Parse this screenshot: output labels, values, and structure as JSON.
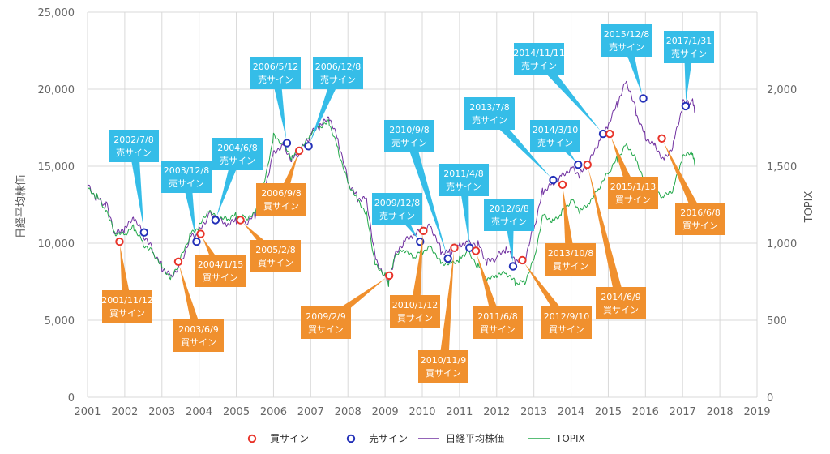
{
  "chart_data": {
    "type": "line",
    "title": "",
    "xlabel": "",
    "ylabel_left": "日経平均株価",
    "ylabel_right": "TOPIX",
    "grid": true,
    "legend_position": "bottom",
    "x_ticks": [
      "2001",
      "2002",
      "2003",
      "2004",
      "2005",
      "2006",
      "2007",
      "2008",
      "2009",
      "2010",
      "2011",
      "2012",
      "2013",
      "2014",
      "2015",
      "2016",
      "2017",
      "2018",
      "2019"
    ],
    "xlim": [
      2001,
      2019
    ],
    "y_left": {
      "lim": [
        0,
        25000
      ],
      "ticks": [
        0,
        5000,
        10000,
        15000,
        20000,
        25000
      ],
      "tick_labels": [
        "0",
        "5,000",
        "10,000",
        "15,000",
        "20,000",
        "25,000"
      ]
    },
    "y_right": {
      "lim": [
        0,
        2500
      ],
      "ticks": [
        0,
        500,
        1000,
        1500,
        2000
      ],
      "tick_labels": [
        "0",
        "500",
        "1,000",
        "1,500",
        "2,000"
      ]
    },
    "colors": {
      "nikkei": "#7030a0",
      "topix": "#22a84a",
      "buy": "#e8342a",
      "sell": "#2330b8",
      "buy_box": "#f0902e",
      "sell_box": "#35bde8"
    },
    "legend": [
      {
        "key": "buy",
        "label": "買サイン"
      },
      {
        "key": "sell",
        "label": "売サイン"
      },
      {
        "key": "nikkei",
        "label": "日経平均株価"
      },
      {
        "key": "topix",
        "label": "TOPIX"
      }
    ],
    "series": [
      {
        "name": "日経平均株価",
        "axis": "left",
        "x": [
          2001.0,
          2001.25,
          2001.5,
          2001.75,
          2002.0,
          2002.25,
          2002.5,
          2002.75,
          2003.0,
          2003.25,
          2003.5,
          2003.75,
          2004.0,
          2004.25,
          2004.5,
          2004.75,
          2005.0,
          2005.25,
          2005.5,
          2005.75,
          2006.0,
          2006.25,
          2006.5,
          2006.75,
          2007.0,
          2007.25,
          2007.5,
          2007.75,
          2008.0,
          2008.25,
          2008.5,
          2008.75,
          2009.0,
          2009.1,
          2009.25,
          2009.5,
          2009.75,
          2010.0,
          2010.25,
          2010.5,
          2010.75,
          2011.0,
          2011.2,
          2011.5,
          2011.75,
          2012.0,
          2012.25,
          2012.5,
          2012.75,
          2013.0,
          2013.25,
          2013.5,
          2013.75,
          2014.0,
          2014.25,
          2014.5,
          2014.75,
          2015.0,
          2015.25,
          2015.5,
          2015.75,
          2016.0,
          2016.25,
          2016.5,
          2016.75,
          2017.0,
          2017.25,
          2017.33
        ],
        "y": [
          13900,
          13000,
          12500,
          10500,
          10800,
          11500,
          10500,
          9500,
          8500,
          8000,
          8700,
          10500,
          10700,
          11800,
          11500,
          11000,
          11400,
          11300,
          11800,
          13500,
          16000,
          16500,
          15500,
          16000,
          17000,
          17500,
          18000,
          16500,
          14000,
          13000,
          13000,
          9000,
          8000,
          7500,
          9000,
          10000,
          10300,
          10800,
          11000,
          9500,
          9500,
          10000,
          10200,
          10000,
          8700,
          9000,
          9500,
          8700,
          8800,
          11000,
          13500,
          14000,
          14500,
          15000,
          14500,
          15200,
          16500,
          17500,
          19000,
          20500,
          18500,
          17000,
          16500,
          15500,
          16500,
          19000,
          19200,
          18500
        ]
      },
      {
        "name": "TOPIX",
        "axis": "right",
        "x": [
          2001.0,
          2001.25,
          2001.5,
          2001.75,
          2002.0,
          2002.25,
          2002.5,
          2002.75,
          2003.0,
          2003.25,
          2003.5,
          2003.75,
          2004.0,
          2004.25,
          2004.5,
          2004.75,
          2005.0,
          2005.25,
          2005.5,
          2005.75,
          2006.0,
          2006.25,
          2006.5,
          2006.75,
          2007.0,
          2007.25,
          2007.5,
          2007.75,
          2008.0,
          2008.25,
          2008.5,
          2008.75,
          2009.0,
          2009.1,
          2009.25,
          2009.5,
          2009.75,
          2010.0,
          2010.25,
          2010.5,
          2010.75,
          2011.0,
          2011.2,
          2011.5,
          2011.75,
          2012.0,
          2012.25,
          2012.5,
          2012.75,
          2013.0,
          2013.25,
          2013.5,
          2013.75,
          2014.0,
          2014.25,
          2014.5,
          2014.75,
          2015.0,
          2015.25,
          2015.5,
          2015.75,
          2016.0,
          2016.25,
          2016.5,
          2016.75,
          2017.0,
          2017.25,
          2017.33
        ],
        "y": [
          1350,
          1300,
          1200,
          1050,
          1050,
          1100,
          1000,
          950,
          860,
          780,
          900,
          1050,
          1100,
          1200,
          1150,
          1150,
          1180,
          1170,
          1200,
          1400,
          1700,
          1650,
          1550,
          1600,
          1700,
          1750,
          1780,
          1600,
          1400,
          1300,
          1200,
          850,
          800,
          730,
          900,
          950,
          900,
          950,
          980,
          880,
          880,
          900,
          950,
          850,
          750,
          780,
          800,
          740,
          750,
          900,
          1200,
          1150,
          1200,
          1280,
          1200,
          1250,
          1350,
          1450,
          1550,
          1650,
          1550,
          1400,
          1350,
          1300,
          1350,
          1550,
          1580,
          1500
        ]
      }
    ],
    "signals": [
      {
        "type": "sell",
        "date": "2002/7/8",
        "label": "売サイン",
        "x": 2002.52,
        "value": 10700
      },
      {
        "type": "sell",
        "date": "2003/12/8",
        "label": "売サイン",
        "x": 2003.93,
        "value": 10100
      },
      {
        "type": "sell",
        "date": "2004/6/8",
        "label": "売サイン",
        "x": 2004.44,
        "value": 11500
      },
      {
        "type": "sell",
        "date": "2006/5/12",
        "label": "売サイン",
        "x": 2006.36,
        "value": 16500
      },
      {
        "type": "sell",
        "date": "2006/12/8",
        "label": "売サイン",
        "x": 2006.94,
        "value": 16300
      },
      {
        "type": "sell",
        "date": "2009/12/8",
        "label": "売サイン",
        "x": 2009.94,
        "value": 10100
      },
      {
        "type": "sell",
        "date": "2010/9/8",
        "label": "売サイン",
        "x": 2010.69,
        "value": 9000
      },
      {
        "type": "sell",
        "date": "2011/4/8",
        "label": "売サイン",
        "x": 2011.27,
        "value": 9700
      },
      {
        "type": "sell",
        "date": "2012/6/8",
        "label": "売サイン",
        "x": 2012.44,
        "value": 8500
      },
      {
        "type": "sell",
        "date": "2013/7/8",
        "label": "売サイン",
        "x": 2013.52,
        "value": 14100
      },
      {
        "type": "sell",
        "date": "2014/3/10",
        "label": "売サイン",
        "x": 2014.19,
        "value": 15100
      },
      {
        "type": "sell",
        "date": "2014/11/11",
        "label": "売サイン",
        "x": 2014.86,
        "value": 17100
      },
      {
        "type": "sell",
        "date": "2015/12/8",
        "label": "売サイン",
        "x": 2015.94,
        "value": 19400
      },
      {
        "type": "sell",
        "date": "2017/1/31",
        "label": "売サイン",
        "x": 2017.08,
        "value": 18900
      },
      {
        "type": "buy",
        "date": "2001/11/12",
        "label": "買サイン",
        "x": 2001.86,
        "value": 10100
      },
      {
        "type": "buy",
        "date": "2003/6/9",
        "label": "買サイン",
        "x": 2003.44,
        "value": 8800
      },
      {
        "type": "buy",
        "date": "2004/1/15",
        "label": "買サイン",
        "x": 2004.04,
        "value": 10600
      },
      {
        "type": "buy",
        "date": "2005/2/8",
        "label": "買サイン",
        "x": 2005.11,
        "value": 11500
      },
      {
        "type": "buy",
        "date": "2006/9/8",
        "label": "買サイン",
        "x": 2006.69,
        "value": 16000
      },
      {
        "type": "buy",
        "date": "2009/2/9",
        "label": "買サイン",
        "x": 2009.11,
        "value": 7900
      },
      {
        "type": "buy",
        "date": "2010/1/12",
        "label": "買サイン",
        "x": 2010.03,
        "value": 10800
      },
      {
        "type": "buy",
        "date": "2010/11/9",
        "label": "買サイン",
        "x": 2010.86,
        "value": 9700
      },
      {
        "type": "buy",
        "date": "2011/6/8",
        "label": "買サイン",
        "x": 2011.44,
        "value": 9500
      },
      {
        "type": "buy",
        "date": "2012/9/10",
        "label": "買サイン",
        "x": 2012.69,
        "value": 8900
      },
      {
        "type": "buy",
        "date": "2013/10/8",
        "label": "買サイン",
        "x": 2013.77,
        "value": 13800
      },
      {
        "type": "buy",
        "date": "2014/6/9",
        "label": "買サイン",
        "x": 2014.44,
        "value": 15100
      },
      {
        "type": "buy",
        "date": "2015/1/13",
        "label": "買サイン",
        "x": 2015.04,
        "value": 17100
      },
      {
        "type": "buy",
        "date": "2016/6/8",
        "label": "買サイン",
        "x": 2016.44,
        "value": 16800
      }
    ]
  }
}
